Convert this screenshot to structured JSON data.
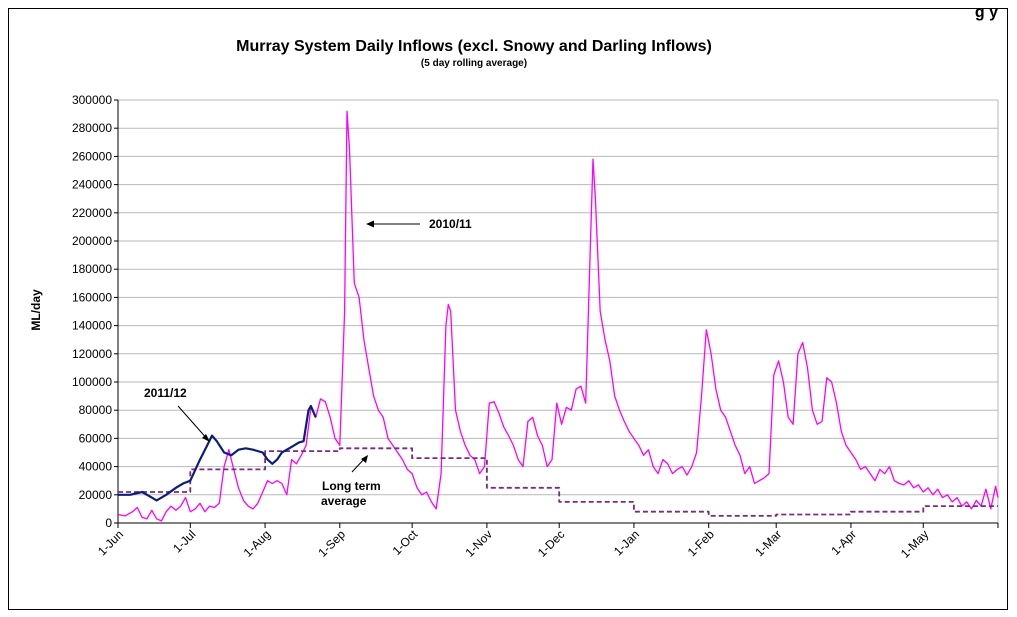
{
  "header": {
    "trailing_text": "g          y"
  },
  "chart_data": {
    "type": "line",
    "title": "Murray System Daily Inflows (excl. Snowy and Darling Inflows)",
    "subtitle": "(5 day rolling average)",
    "xlabel": "",
    "ylabel": "ML/day",
    "xlim": [
      0,
      365
    ],
    "ylim": [
      0,
      300000
    ],
    "y_ticks": [
      0,
      20000,
      40000,
      60000,
      80000,
      100000,
      120000,
      140000,
      160000,
      180000,
      200000,
      220000,
      240000,
      260000,
      280000,
      300000
    ],
    "x_ticks": [
      {
        "label": "1-Jun",
        "day": 0
      },
      {
        "label": "1-Jul",
        "day": 30
      },
      {
        "label": "1-Aug",
        "day": 61
      },
      {
        "label": "1-Sep",
        "day": 92
      },
      {
        "label": "1-Oct",
        "day": 122
      },
      {
        "label": "1-Nov",
        "day": 153
      },
      {
        "label": "1-Dec",
        "day": 183
      },
      {
        "label": "1-Jan",
        "day": 214
      },
      {
        "label": "1-Feb",
        "day": 245
      },
      {
        "label": "1-Mar",
        "day": 273
      },
      {
        "label": "1-Apr",
        "day": 304
      },
      {
        "label": "1-May",
        "day": 334
      }
    ],
    "grid": true,
    "series": [
      {
        "name": "2010/11",
        "color": "#ff00ff",
        "style": "solid",
        "points": [
          [
            0,
            6000
          ],
          [
            3,
            5000
          ],
          [
            6,
            8000
          ],
          [
            8,
            11000
          ],
          [
            10,
            4000
          ],
          [
            12,
            3000
          ],
          [
            14,
            9000
          ],
          [
            16,
            3000
          ],
          [
            18,
            1500
          ],
          [
            20,
            8000
          ],
          [
            22,
            12000
          ],
          [
            24,
            9000
          ],
          [
            26,
            12000
          ],
          [
            28,
            18000
          ],
          [
            30,
            8000
          ],
          [
            32,
            10000
          ],
          [
            34,
            14000
          ],
          [
            36,
            8000
          ],
          [
            38,
            12000
          ],
          [
            40,
            11000
          ],
          [
            42,
            14000
          ],
          [
            44,
            40000
          ],
          [
            46,
            52000
          ],
          [
            48,
            38000
          ],
          [
            50,
            25000
          ],
          [
            52,
            16000
          ],
          [
            54,
            12000
          ],
          [
            56,
            10000
          ],
          [
            58,
            14000
          ],
          [
            60,
            22000
          ],
          [
            62,
            30000
          ],
          [
            64,
            28000
          ],
          [
            66,
            30000
          ],
          [
            68,
            28000
          ],
          [
            70,
            20000
          ],
          [
            72,
            45000
          ],
          [
            74,
            42000
          ],
          [
            76,
            48000
          ],
          [
            78,
            55000
          ],
          [
            80,
            82000
          ],
          [
            82,
            75000
          ],
          [
            84,
            88000
          ],
          [
            86,
            86000
          ],
          [
            88,
            75000
          ],
          [
            90,
            60000
          ],
          [
            92,
            55000
          ],
          [
            94,
            150000
          ],
          [
            95,
            292000
          ],
          [
            96,
            265000
          ],
          [
            98,
            170000
          ],
          [
            100,
            160000
          ],
          [
            102,
            130000
          ],
          [
            104,
            110000
          ],
          [
            106,
            90000
          ],
          [
            108,
            80000
          ],
          [
            110,
            75000
          ],
          [
            112,
            60000
          ],
          [
            114,
            55000
          ],
          [
            116,
            50000
          ],
          [
            118,
            45000
          ],
          [
            120,
            38000
          ],
          [
            122,
            35000
          ],
          [
            124,
            25000
          ],
          [
            126,
            20000
          ],
          [
            128,
            22000
          ],
          [
            130,
            15000
          ],
          [
            132,
            10000
          ],
          [
            134,
            35000
          ],
          [
            136,
            140000
          ],
          [
            137,
            155000
          ],
          [
            138,
            150000
          ],
          [
            140,
            80000
          ],
          [
            142,
            65000
          ],
          [
            144,
            55000
          ],
          [
            146,
            48000
          ],
          [
            148,
            45000
          ],
          [
            150,
            35000
          ],
          [
            152,
            40000
          ],
          [
            154,
            85000
          ],
          [
            156,
            86000
          ],
          [
            158,
            78000
          ],
          [
            160,
            68000
          ],
          [
            162,
            62000
          ],
          [
            164,
            55000
          ],
          [
            166,
            45000
          ],
          [
            168,
            40000
          ],
          [
            170,
            72000
          ],
          [
            172,
            75000
          ],
          [
            174,
            62000
          ],
          [
            176,
            55000
          ],
          [
            178,
            40000
          ],
          [
            180,
            45000
          ],
          [
            182,
            85000
          ],
          [
            184,
            70000
          ],
          [
            186,
            82000
          ],
          [
            188,
            80000
          ],
          [
            190,
            95000
          ],
          [
            192,
            97000
          ],
          [
            194,
            85000
          ],
          [
            196,
            200000
          ],
          [
            197,
            258000
          ],
          [
            198,
            230000
          ],
          [
            200,
            150000
          ],
          [
            202,
            130000
          ],
          [
            204,
            115000
          ],
          [
            206,
            90000
          ],
          [
            208,
            80000
          ],
          [
            210,
            72000
          ],
          [
            212,
            65000
          ],
          [
            214,
            60000
          ],
          [
            216,
            55000
          ],
          [
            218,
            48000
          ],
          [
            220,
            52000
          ],
          [
            222,
            40000
          ],
          [
            224,
            35000
          ],
          [
            226,
            45000
          ],
          [
            228,
            42000
          ],
          [
            230,
            35000
          ],
          [
            232,
            38000
          ],
          [
            234,
            40000
          ],
          [
            236,
            34000
          ],
          [
            238,
            40000
          ],
          [
            240,
            50000
          ],
          [
            242,
            90000
          ],
          [
            244,
            137000
          ],
          [
            246,
            120000
          ],
          [
            248,
            95000
          ],
          [
            250,
            80000
          ],
          [
            252,
            75000
          ],
          [
            254,
            65000
          ],
          [
            256,
            55000
          ],
          [
            258,
            48000
          ],
          [
            260,
            35000
          ],
          [
            262,
            40000
          ],
          [
            264,
            28000
          ],
          [
            266,
            30000
          ],
          [
            268,
            32000
          ],
          [
            270,
            35000
          ],
          [
            272,
            105000
          ],
          [
            274,
            115000
          ],
          [
            276,
            100000
          ],
          [
            278,
            75000
          ],
          [
            280,
            70000
          ],
          [
            282,
            120000
          ],
          [
            284,
            128000
          ],
          [
            286,
            110000
          ],
          [
            288,
            80000
          ],
          [
            290,
            70000
          ],
          [
            292,
            72000
          ],
          [
            294,
            103000
          ],
          [
            296,
            100000
          ],
          [
            298,
            85000
          ],
          [
            300,
            65000
          ],
          [
            302,
            55000
          ],
          [
            304,
            50000
          ],
          [
            306,
            45000
          ],
          [
            308,
            38000
          ],
          [
            310,
            40000
          ],
          [
            312,
            35000
          ],
          [
            314,
            30000
          ],
          [
            316,
            38000
          ],
          [
            318,
            35000
          ],
          [
            320,
            40000
          ],
          [
            322,
            30000
          ],
          [
            324,
            28000
          ],
          [
            326,
            27000
          ],
          [
            328,
            30000
          ],
          [
            330,
            25000
          ],
          [
            332,
            27000
          ],
          [
            334,
            22000
          ],
          [
            336,
            25000
          ],
          [
            338,
            20000
          ],
          [
            340,
            24000
          ],
          [
            342,
            18000
          ],
          [
            344,
            20000
          ],
          [
            346,
            15000
          ],
          [
            348,
            18000
          ],
          [
            350,
            12000
          ],
          [
            352,
            15000
          ],
          [
            354,
            10000
          ],
          [
            356,
            16000
          ],
          [
            358,
            12000
          ],
          [
            360,
            24000
          ],
          [
            362,
            10000
          ],
          [
            364,
            26000
          ],
          [
            365,
            18000
          ]
        ]
      },
      {
        "name": "2011/12",
        "color": "#0a1f7c",
        "style": "solid",
        "points": [
          [
            0,
            20000
          ],
          [
            5,
            20000
          ],
          [
            10,
            22000
          ],
          [
            14,
            18000
          ],
          [
            16,
            16000
          ],
          [
            20,
            20000
          ],
          [
            24,
            25000
          ],
          [
            27,
            28000
          ],
          [
            30,
            30000
          ],
          [
            34,
            45000
          ],
          [
            37,
            55000
          ],
          [
            39,
            62000
          ],
          [
            41,
            58000
          ],
          [
            44,
            50000
          ],
          [
            47,
            48000
          ],
          [
            50,
            52000
          ],
          [
            53,
            53000
          ],
          [
            56,
            52000
          ],
          [
            60,
            50000
          ],
          [
            62,
            45000
          ],
          [
            64,
            42000
          ],
          [
            66,
            45000
          ],
          [
            68,
            50000
          ],
          [
            70,
            52000
          ],
          [
            72,
            54000
          ],
          [
            75,
            57000
          ],
          [
            77,
            58000
          ],
          [
            79,
            80000
          ],
          [
            80,
            83000
          ],
          [
            82,
            75000
          ]
        ]
      },
      {
        "name": "Long term average",
        "color": "#7b2b7f",
        "style": "dashed",
        "points": [
          [
            0,
            22000
          ],
          [
            30,
            22000
          ],
          [
            30,
            38000
          ],
          [
            61,
            38000
          ],
          [
            61,
            51000
          ],
          [
            92,
            51000
          ],
          [
            92,
            53000
          ],
          [
            122,
            53000
          ],
          [
            122,
            46000
          ],
          [
            153,
            46000
          ],
          [
            153,
            25000
          ],
          [
            183,
            25000
          ],
          [
            183,
            15000
          ],
          [
            214,
            15000
          ],
          [
            214,
            8000
          ],
          [
            245,
            8000
          ],
          [
            245,
            5000
          ],
          [
            273,
            5000
          ],
          [
            273,
            6000
          ],
          [
            304,
            6000
          ],
          [
            304,
            8000
          ],
          [
            334,
            8000
          ],
          [
            334,
            12000
          ],
          [
            365,
            12000
          ]
        ]
      }
    ],
    "annotations": [
      {
        "text": "2010/11",
        "target_series": "2010/11"
      },
      {
        "text": "2011/12",
        "target_series": "2011/12"
      },
      {
        "text": "Long term",
        "target_series": "Long term average"
      },
      {
        "text": "average",
        "target_series": "Long term average"
      }
    ]
  }
}
